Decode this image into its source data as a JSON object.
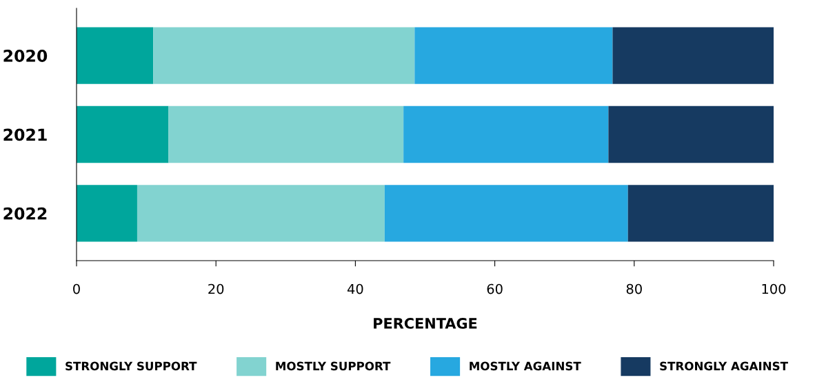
{
  "chart_data": {
    "type": "bar",
    "orientation": "horizontal",
    "stacked": true,
    "xlabel": "PERCENTAGE",
    "categories": [
      "2020",
      "2021",
      "2022"
    ],
    "series": [
      {
        "name": "STRONGLY SUPPORT",
        "color": "#00a69c",
        "values": [
          11.0,
          13.2,
          8.7
        ]
      },
      {
        "name": "MOSTLY SUPPORT",
        "color": "#82d3d0",
        "values": [
          37.5,
          33.7,
          35.5
        ]
      },
      {
        "name": "MOSTLY AGAINST",
        "color": "#27a8e0",
        "values": [
          28.4,
          29.4,
          34.9
        ]
      },
      {
        "name": "STRONGLY AGAINST",
        "color": "#163a61",
        "values": [
          23.1,
          23.7,
          20.9
        ]
      }
    ],
    "xlim": [
      0,
      100
    ],
    "xticks": [
      0,
      20,
      40,
      60,
      80,
      100
    ],
    "grid": false,
    "legend": "bottom"
  }
}
